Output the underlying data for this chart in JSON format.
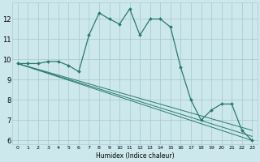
{
  "xlabel": "Humidex (Indice chaleur)",
  "background_color": "#cce8ec",
  "grid_color": "#aaccd4",
  "line_color": "#2a7a6a",
  "xlim": [
    -0.5,
    23.5
  ],
  "ylim": [
    5.8,
    12.8
  ],
  "yticks": [
    6,
    7,
    8,
    9,
    10,
    11,
    12
  ],
  "xticks": [
    0,
    1,
    2,
    3,
    4,
    5,
    6,
    7,
    8,
    9,
    10,
    11,
    12,
    13,
    14,
    15,
    16,
    17,
    18,
    19,
    20,
    21,
    22,
    23
  ],
  "main_line": {
    "x": [
      0,
      1,
      2,
      3,
      4,
      5,
      6,
      7,
      8,
      9,
      10,
      11,
      12,
      13,
      14,
      15,
      16,
      17,
      18,
      19,
      20,
      21,
      22,
      23
    ],
    "y": [
      9.8,
      9.8,
      9.8,
      9.9,
      9.9,
      9.7,
      9.4,
      11.2,
      12.3,
      12.0,
      11.75,
      12.5,
      11.2,
      12.0,
      12.0,
      11.6,
      9.6,
      8.0,
      7.0,
      7.5,
      7.8,
      7.8,
      6.5,
      6.0
    ]
  },
  "trend_lines": [
    {
      "x": [
        0,
        23
      ],
      "y": [
        9.8,
        6.0
      ]
    },
    {
      "x": [
        0,
        23
      ],
      "y": [
        9.8,
        6.2
      ]
    },
    {
      "x": [
        0,
        23
      ],
      "y": [
        9.8,
        6.5
      ]
    }
  ]
}
